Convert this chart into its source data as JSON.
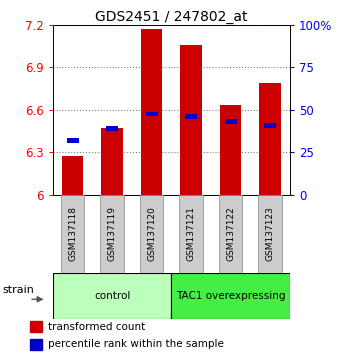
{
  "title": "GDS2451 / 247802_at",
  "samples": [
    "GSM137118",
    "GSM137119",
    "GSM137120",
    "GSM137121",
    "GSM137122",
    "GSM137123"
  ],
  "red_values": [
    6.27,
    6.47,
    7.17,
    7.06,
    6.63,
    6.79
  ],
  "blue_values": [
    6.385,
    6.465,
    6.57,
    6.555,
    6.515,
    6.49
  ],
  "y_min": 6.0,
  "y_max": 7.2,
  "y_ticks": [
    6.0,
    6.3,
    6.6,
    6.9,
    7.2
  ],
  "y_tick_labels": [
    "6",
    "6.3",
    "6.6",
    "6.9",
    "7.2"
  ],
  "right_pcts": [
    0,
    25,
    50,
    75,
    100
  ],
  "right_labels": [
    "0",
    "25",
    "50",
    "75",
    "100%"
  ],
  "groups": [
    {
      "label": "control",
      "indices": [
        0,
        1,
        2
      ],
      "color": "#bbffbb"
    },
    {
      "label": "TAC1 overexpressing",
      "indices": [
        3,
        4,
        5
      ],
      "color": "#44ee44"
    }
  ],
  "bar_width": 0.55,
  "red_color": "#cc0000",
  "blue_color": "#0000cc",
  "strain_label": "strain",
  "legend_red": "transformed count",
  "legend_blue": "percentile rank within the sample",
  "sample_bg": "#cccccc"
}
